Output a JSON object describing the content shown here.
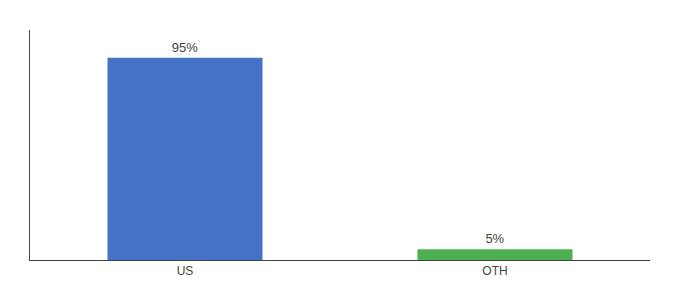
{
  "chart_data": {
    "type": "bar",
    "categories": [
      "US",
      "OTH"
    ],
    "values": [
      95,
      5
    ],
    "colors": [
      "#4472c4",
      "#4caf50"
    ],
    "value_labels": [
      "95%",
      "5%"
    ],
    "data_labels": true,
    "ylim": [
      0,
      108
    ],
    "tick_labels": "x",
    "grid": false
  }
}
